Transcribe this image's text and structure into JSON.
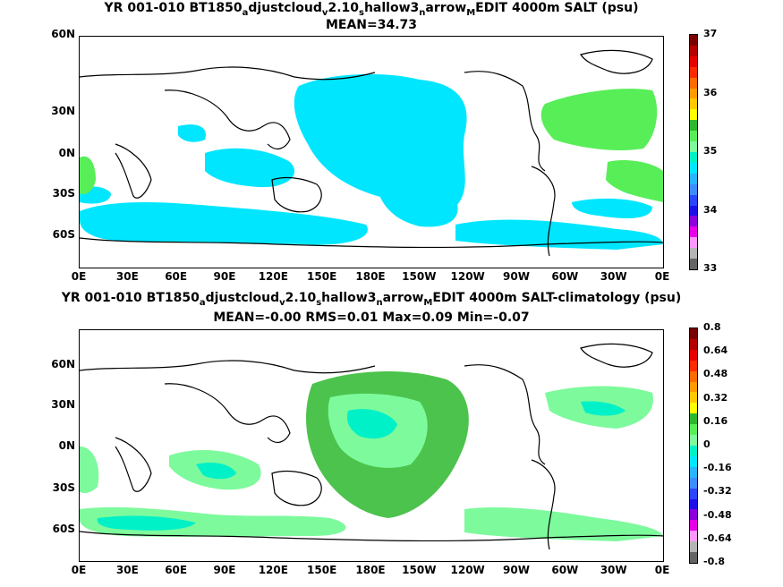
{
  "panel1": {
    "title": {
      "pre": "YR 001-010 BT1850",
      "s1": "a",
      "m1": "djustcloud",
      "s2": "v",
      "m2": "2.10",
      "s3": "s",
      "m3": "hallow3",
      "s4": "n",
      "m4": "arrow",
      "s5": "M",
      "post": "EDIT 4000m SALT (psu)"
    },
    "subtitle": "MEAN=34.73",
    "colorbar": {
      "ticks": [
        "37",
        "36",
        "35",
        "34",
        "33"
      ],
      "colors": [
        "#7a0000",
        "#b40000",
        "#e60000",
        "#ff2a00",
        "#ff6a00",
        "#ff9a00",
        "#ffc800",
        "#ffff00",
        "#2db82d",
        "#58ee58",
        "#7dfa9c",
        "#00f0c8",
        "#00e6ff",
        "#28b4ff",
        "#3c8cff",
        "#2b46ff",
        "#1e0ee6",
        "#8c00dc",
        "#e600e6",
        "#ff96ff",
        "#b4b4b4",
        "#646464"
      ]
    }
  },
  "panel2": {
    "title": {
      "pre": "YR 001-010 BT1850",
      "s1": "a",
      "m1": "djustcloud",
      "s2": "v",
      "m2": "2.10",
      "s3": "s",
      "m3": "hallow3",
      "s4": "n",
      "m4": "arrow",
      "s5": "M",
      "post": "EDIT 4000m SALT-climatology (psu)"
    },
    "subtitle": "MEAN=-0.00   RMS=0.01   Max=0.09   Min=-0.07",
    "colorbar": {
      "ticks": [
        "0.8",
        "0.64",
        "0.48",
        "0.32",
        "0.16",
        "0",
        "-0.16",
        "-0.32",
        "-0.48",
        "-0.64",
        "-0.8"
      ],
      "colors": [
        "#7a0000",
        "#b40000",
        "#e60000",
        "#ff2a00",
        "#ff6a00",
        "#ff9a00",
        "#ffc800",
        "#ffff00",
        "#2db82d",
        "#58ee58",
        "#7dfa9c",
        "#00f0c8",
        "#00e6ff",
        "#28b4ff",
        "#3c8cff",
        "#2b46ff",
        "#1e0ee6",
        "#8c00dc",
        "#e600e6",
        "#ff96ff",
        "#b4b4b4",
        "#646464"
      ]
    }
  },
  "xticks": [
    "0E",
    "30E",
    "60E",
    "90E",
    "120E",
    "150E",
    "180E",
    "150W",
    "120W",
    "90W",
    "60W",
    "30W",
    "0E"
  ],
  "yticks": [
    "60N",
    "30N",
    "0N",
    "30S",
    "60S"
  ],
  "chart_data": [
    {
      "type": "heatmap",
      "title": "YR 001-010 BT1850_adjustcloud_v2.10_shallow3_narrow_MEDIT 4000m SALT (psu)",
      "subtitle": "MEAN=34.73",
      "x_tick_labels": [
        "0E",
        "30E",
        "60E",
        "90E",
        "120E",
        "150E",
        "180E",
        "150W",
        "120W",
        "90W",
        "60W",
        "30W",
        "0E"
      ],
      "y_tick_labels": [
        "60N",
        "30N",
        "0N",
        "30S",
        "60S"
      ],
      "xlim": [
        0,
        360
      ],
      "ylim": [
        -80,
        80
      ],
      "colorbar_range": [
        33,
        37
      ],
      "colorbar_ticks": [
        33,
        34,
        35,
        36,
        37
      ],
      "units": "psu",
      "mean": 34.73
    },
    {
      "type": "heatmap",
      "title": "YR 001-010 BT1850_adjustcloud_v2.10_shallow3_narrow_MEDIT 4000m SALT-climatology (psu)",
      "subtitle": "MEAN=-0.00   RMS=0.01   Max=0.09   Min=-0.07",
      "x_tick_labels": [
        "0E",
        "30E",
        "60E",
        "90E",
        "120E",
        "150E",
        "180E",
        "150W",
        "120W",
        "90W",
        "60W",
        "30W",
        "0E"
      ],
      "y_tick_labels": [
        "60N",
        "30N",
        "0N",
        "30S",
        "60S"
      ],
      "xlim": [
        0,
        360
      ],
      "ylim": [
        -80,
        80
      ],
      "colorbar_range": [
        -0.8,
        0.8
      ],
      "colorbar_ticks": [
        -0.8,
        -0.64,
        -0.48,
        -0.32,
        -0.16,
        0,
        0.16,
        0.32,
        0.48,
        0.64,
        0.8
      ],
      "units": "psu",
      "mean": -0.0,
      "rms": 0.01,
      "max": 0.09,
      "min": -0.07
    }
  ]
}
